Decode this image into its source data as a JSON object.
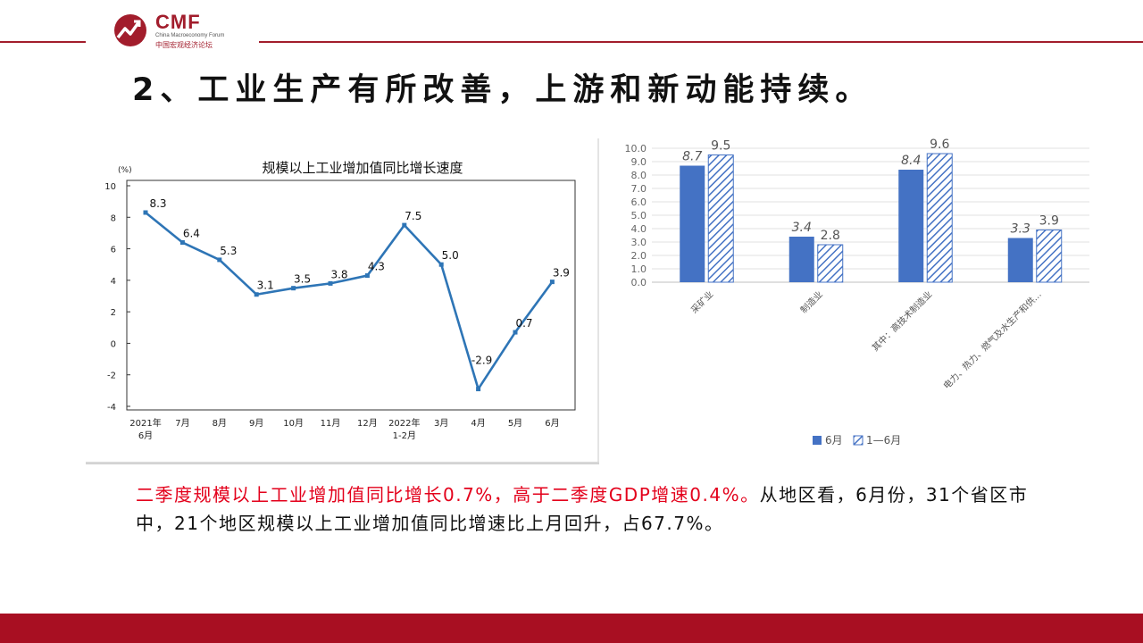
{
  "header": {
    "logo_name": "CMF",
    "logo_subtitle": "China Macroeconomy Forum",
    "logo_cn": "中国宏观经济论坛"
  },
  "slide_title": "2、工业生产有所改善，上游和新动能持续。",
  "description": {
    "highlight": "二季度规模以上工业增加值同比增长0.7%，高于二季度GDP增速0.4%。",
    "rest": "从地区看，6月份，31个省区市中，21个地区规模以上工业增加值同比增速比上月回升，占67.7%。"
  },
  "colors": {
    "brand_red": "#a21d2c",
    "line_blue": "#2e75b6",
    "bar_blue": "#4472c4",
    "highlight_red": "#e3001b"
  },
  "chart_data": [
    {
      "type": "line",
      "title": "规模以上工业增加值同比增长速度",
      "ylabel": "(%)",
      "ylim": [
        -4,
        10
      ],
      "yticks": [
        10,
        8,
        6,
        4,
        2,
        0,
        -2,
        -4
      ],
      "categories": [
        [
          "2021年",
          "6月"
        ],
        [
          "7月"
        ],
        [
          "8月"
        ],
        [
          "9月"
        ],
        [
          "10月"
        ],
        [
          "11月"
        ],
        [
          "12月"
        ],
        [
          "2022年",
          "1-2月"
        ],
        [
          "3月"
        ],
        [
          "4月"
        ],
        [
          "5月"
        ],
        [
          "6月"
        ]
      ],
      "values": [
        8.3,
        6.4,
        5.3,
        3.1,
        3.5,
        3.8,
        4.3,
        7.5,
        5.0,
        -2.9,
        0.7,
        3.9
      ],
      "data_labels": [
        "8.3",
        "6.4",
        "5.3",
        "3.1",
        "3.5",
        "3.8",
        "4.3",
        "7.5",
        "5.0",
        "-2.9",
        "0.7",
        "3.9"
      ],
      "grid": false
    },
    {
      "type": "bar",
      "categories": [
        "采矿业",
        "制造业",
        "其中：高技术制造业",
        "电力、热力、燃气及水生产和供…"
      ],
      "series": [
        {
          "name": "6月",
          "values": [
            8.7,
            3.4,
            8.4,
            3.3
          ],
          "labels": [
            "8.7",
            "3.4",
            "8.4",
            "3.3"
          ],
          "pattern": "solid"
        },
        {
          "name": "1—6月",
          "values": [
            9.5,
            2.8,
            9.6,
            3.9
          ],
          "labels": [
            "9.5",
            "2.8",
            "9.6",
            "3.9"
          ],
          "pattern": "hatched"
        }
      ],
      "ylim": [
        0,
        10
      ],
      "yticks": [
        "10.0",
        "9.0",
        "8.0",
        "7.0",
        "6.0",
        "5.0",
        "4.0",
        "3.0",
        "2.0",
        "1.0",
        "0.0"
      ],
      "grid": true,
      "legend": "bottom"
    }
  ]
}
